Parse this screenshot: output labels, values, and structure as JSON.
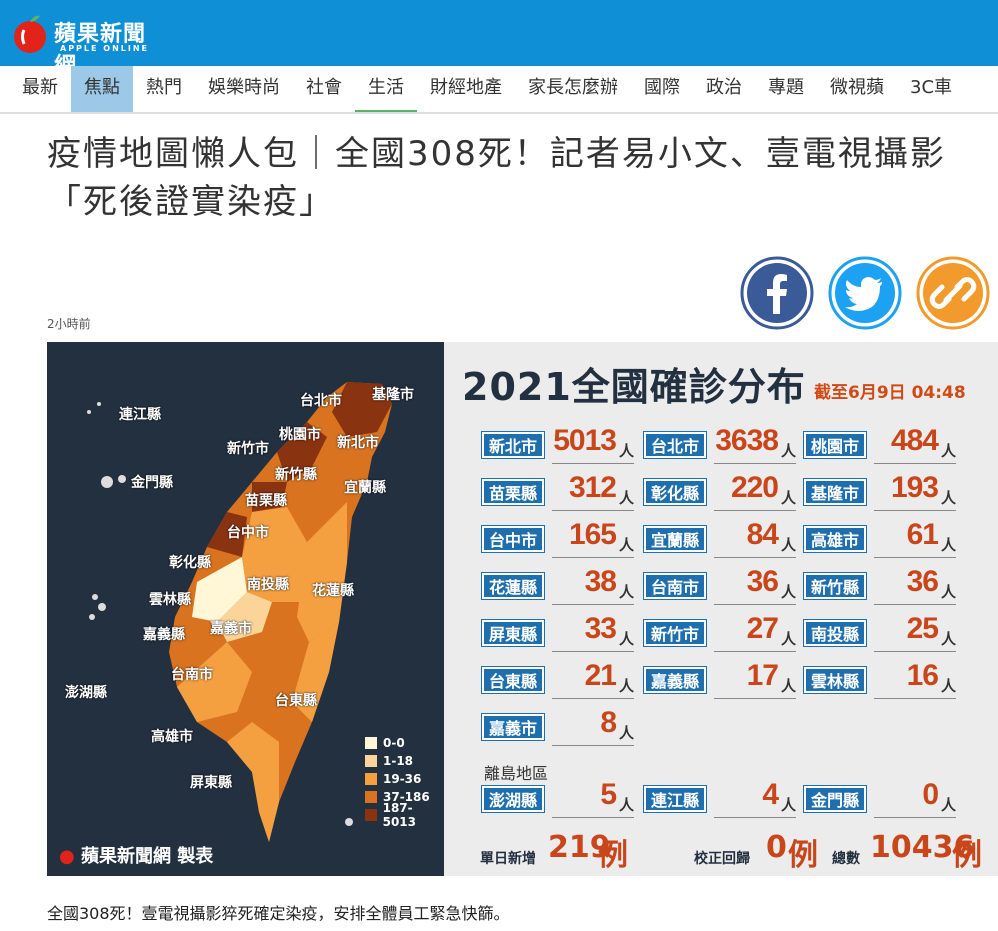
{
  "site": {
    "name": "蘋果新聞網",
    "sub": "APPLE ONLINE",
    "brand_color": "#0f8fd6"
  },
  "nav": {
    "items": [
      "最新",
      "焦點",
      "熱門",
      "娛樂時尚",
      "社會",
      "生活",
      "財經地產",
      "家長怎麼辦",
      "國際",
      "政治",
      "專題",
      "微視蘋",
      "3C車"
    ],
    "active": "焦點",
    "underlined": "生活"
  },
  "article": {
    "headline": "疫情地圖懶人包｜全國308死！記者易小文、壹電視攝影「死後證實染疫」",
    "time": "2小時前",
    "caption": "全國308死！壹電視攝影猝死確定染疫，安排全體員工緊急快篩。"
  },
  "share": {
    "facebook": "facebook-icon",
    "twitter": "twitter-icon",
    "link": "link-icon"
  },
  "infographic": {
    "title": "2021全國確診分布",
    "asof": "截至6月9日 04:48",
    "unit": "人",
    "counties": [
      {
        "name": "新北市",
        "count": "5013"
      },
      {
        "name": "台北市",
        "count": "3638"
      },
      {
        "name": "桃園市",
        "count": "484"
      },
      {
        "name": "苗栗縣",
        "count": "312"
      },
      {
        "name": "彰化縣",
        "count": "220"
      },
      {
        "name": "基隆市",
        "count": "193"
      },
      {
        "name": "台中市",
        "count": "165"
      },
      {
        "name": "宜蘭縣",
        "count": "84"
      },
      {
        "name": "高雄市",
        "count": "61"
      },
      {
        "name": "花蓮縣",
        "count": "38"
      },
      {
        "name": "台南市",
        "count": "36"
      },
      {
        "name": "新竹縣",
        "count": "36"
      },
      {
        "name": "屏東縣",
        "count": "33"
      },
      {
        "name": "新竹市",
        "count": "27"
      },
      {
        "name": "南投縣",
        "count": "25"
      },
      {
        "name": "台東縣",
        "count": "21"
      },
      {
        "name": "嘉義縣",
        "count": "17"
      },
      {
        "name": "雲林縣",
        "count": "16"
      },
      {
        "name": "嘉義市",
        "count": "8"
      }
    ],
    "island_label": "離島地區",
    "islands": [
      {
        "name": "澎湖縣",
        "count": "5"
      },
      {
        "name": "連江縣",
        "count": "4"
      },
      {
        "name": "金門縣",
        "count": "0"
      }
    ],
    "daily_label": "單日新增",
    "daily_value": "219",
    "case_unit": "例",
    "correction_label": "校正回歸",
    "correction_value": "0",
    "total_label": "總數",
    "total_value": "10436",
    "credit": "蘋果新聞網 製表",
    "legend": [
      {
        "range": "0-0",
        "color": "#fff7d6"
      },
      {
        "range": "1-18",
        "color": "#fbd49a"
      },
      {
        "range": "19-36",
        "color": "#f4a041"
      },
      {
        "range": "37-186",
        "color": "#d9731f"
      },
      {
        "range": "187-5013",
        "color": "#8a3311"
      }
    ],
    "map_labels": [
      "台北市",
      "基隆市",
      "連江縣",
      "桃園市",
      "新竹市",
      "新北市",
      "新竹縣",
      "金門縣",
      "宜蘭縣",
      "苗栗縣",
      "台中市",
      "彰化縣",
      "南投縣",
      "花蓮縣",
      "雲林縣",
      "嘉義縣",
      "嘉義市",
      "台南市",
      "澎湖縣",
      "台東縣",
      "高雄市",
      "屏東縣"
    ]
  }
}
